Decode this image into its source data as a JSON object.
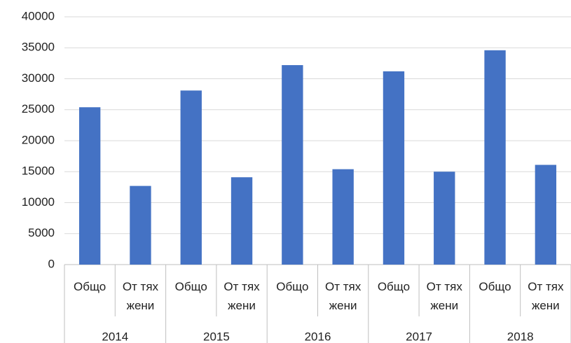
{
  "chart_data": {
    "type": "bar",
    "categories": [
      "Общо",
      "От тях жени",
      "Общо",
      "От тях жени",
      "Общо",
      "От тях жени",
      "Общо",
      "От тях жени",
      "Общо",
      "От тях жени"
    ],
    "groups": [
      "2014",
      "2015",
      "2016",
      "2017",
      "2018"
    ],
    "values": [
      25400,
      12700,
      28100,
      14100,
      32200,
      15400,
      31200,
      15000,
      34600,
      16100
    ],
    "color": "#4472c4",
    "ylim": [
      0,
      40000
    ],
    "yticks": [
      0,
      5000,
      10000,
      15000,
      20000,
      25000,
      30000,
      35000,
      40000
    ],
    "grid": true
  }
}
